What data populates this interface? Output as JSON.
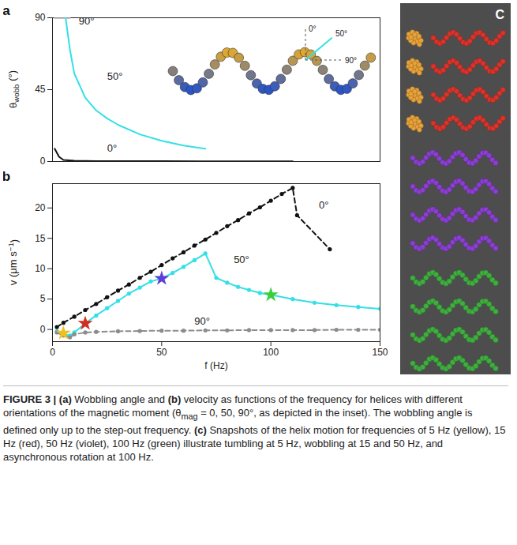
{
  "chart_data": [
    {
      "letter": "a",
      "type": "line",
      "ylabel": [
        {
          "text": "θ"
        },
        {
          "text": "wobb",
          "sub": true
        },
        {
          "text": " (°)"
        }
      ],
      "xlim": [
        0,
        150
      ],
      "ylim": [
        0,
        90
      ],
      "yticks": [
        0,
        45,
        90
      ],
      "tick_labels": "y",
      "series": [
        {
          "color": "#8c8c8c",
          "line_style": "solid",
          "x": [
            1,
            5,
            8
          ],
          "values": [
            90,
            90,
            90
          ]
        },
        {
          "color": "#33e0e6",
          "line_style": "solid",
          "x": [
            6,
            8,
            10,
            15,
            20,
            25,
            30,
            40,
            50,
            60,
            70
          ],
          "values": [
            90,
            70,
            55,
            40,
            32,
            27,
            23,
            17,
            13,
            10,
            8
          ]
        },
        {
          "color": "#111111",
          "line_style": "solid",
          "x": [
            1,
            3,
            5,
            10,
            20,
            50,
            110
          ],
          "values": [
            8,
            3,
            1,
            0.5,
            0.3,
            0.2,
            0.1
          ]
        }
      ],
      "annotations": [
        {
          "text": "90°",
          "x": 12,
          "y": 88
        },
        {
          "text": "50°",
          "x": 25,
          "y": 53
        },
        {
          "text": "0°",
          "x": 25,
          "y": 8
        }
      ],
      "inset": {
        "labels": [
          "0°",
          "50°",
          "90°"
        ]
      }
    },
    {
      "letter": "b",
      "type": "line",
      "xlabel": "f (Hz)",
      "ylabel": [
        {
          "text": "v (μm s"
        },
        {
          "text": "−1",
          "sup": true
        },
        {
          "text": ")"
        }
      ],
      "xlim": [
        0,
        150
      ],
      "xticks": [
        0,
        50,
        100,
        150
      ],
      "ylim": [
        -2,
        24
      ],
      "yticks": [
        0,
        5,
        10,
        15,
        20
      ],
      "series": [
        {
          "color": "#111111",
          "line_style": "dashed",
          "marker": "circle",
          "x": [
            2,
            5,
            10,
            15,
            20,
            25,
            30,
            35,
            40,
            45,
            50,
            55,
            60,
            65,
            70,
            75,
            80,
            85,
            90,
            95,
            100,
            105,
            110,
            112,
            127
          ],
          "values": [
            0.4,
            1.1,
            2.1,
            3.2,
            4.2,
            5.3,
            6.4,
            7.4,
            8.5,
            9.5,
            10.6,
            11.7,
            12.7,
            13.8,
            14.8,
            15.9,
            17.0,
            18.0,
            19.1,
            20.1,
            21.2,
            22.3,
            23.3,
            18.8,
            13.2
          ]
        },
        {
          "color": "#33e0e6",
          "line_style": "solid",
          "marker": "circle",
          "x": [
            2,
            5,
            8,
            10,
            15,
            20,
            25,
            30,
            35,
            40,
            45,
            50,
            55,
            60,
            65,
            70,
            75,
            80,
            85,
            90,
            95,
            100,
            110,
            120,
            130,
            140,
            150
          ],
          "values": [
            -0.3,
            -0.8,
            -1.0,
            -0.5,
            1.0,
            2.3,
            3.5,
            4.7,
            5.9,
            6.9,
            7.9,
            8.4,
            9.3,
            10.3,
            11.4,
            12.5,
            8.5,
            7.7,
            7.0,
            6.5,
            6.0,
            5.7,
            5.0,
            4.4,
            4.0,
            3.7,
            3.4
          ]
        },
        {
          "color": "#8c8c8c",
          "line_style": "dashed",
          "marker": "circle",
          "x": [
            2,
            5,
            8,
            10,
            15,
            20,
            30,
            40,
            50,
            60,
            70,
            80,
            90,
            100,
            110,
            120,
            130,
            140,
            150
          ],
          "values": [
            -0.5,
            -1.0,
            -1.3,
            -0.8,
            -0.5,
            -0.4,
            -0.3,
            -0.25,
            -0.2,
            -0.2,
            -0.15,
            -0.15,
            -0.1,
            -0.1,
            -0.1,
            -0.1,
            -0.05,
            -0.05,
            -0.05
          ]
        },
        {
          "type": "scatter",
          "marker": "star",
          "colors": [
            "#f0c020",
            "#d03020",
            "#5b3fd8",
            "#3ccf3c"
          ],
          "x": [
            5,
            15,
            50,
            100
          ],
          "values": [
            -0.6,
            1.0,
            8.4,
            5.7
          ]
        }
      ],
      "annotations": [
        {
          "text": "0°",
          "x": 122,
          "y": 20.5
        },
        {
          "text": "50°",
          "x": 83,
          "y": 11.5
        },
        {
          "text": "90°",
          "x": 65,
          "y": 1.3
        }
      ]
    }
  ],
  "panel_c": {
    "letter": "C",
    "snapshot_colors": [
      "#e8a23a",
      "#d9342b",
      "#8a3fd0",
      "#3fae3f"
    ]
  },
  "caption": [
    {
      "text": "FIGURE 3 | ",
      "bold": true
    },
    {
      "text": "(a)",
      "bold": true
    },
    {
      "text": " Wobbling angle and "
    },
    {
      "text": "(b)",
      "bold": true
    },
    {
      "text": " velocity as functions of the frequency for helices with different orientations of the magnetic moment (θ"
    },
    {
      "text": "mag",
      "sub": true
    },
    {
      "text": " = 0, 50, 90°, as depicted in the inset). The wobbling angle is defined only up to the step-out frequency. "
    },
    {
      "text": "(c)",
      "bold": true
    },
    {
      "text": " Snapshots of the helix motion for frequencies of 5 Hz (yellow), 15 Hz (red), 50 Hz (violet), 100 Hz (green) illustrate tumbling at 5 Hz, wobbling at 15 and 50 Hz, and asynchronous rotation at 100 Hz."
    }
  ]
}
